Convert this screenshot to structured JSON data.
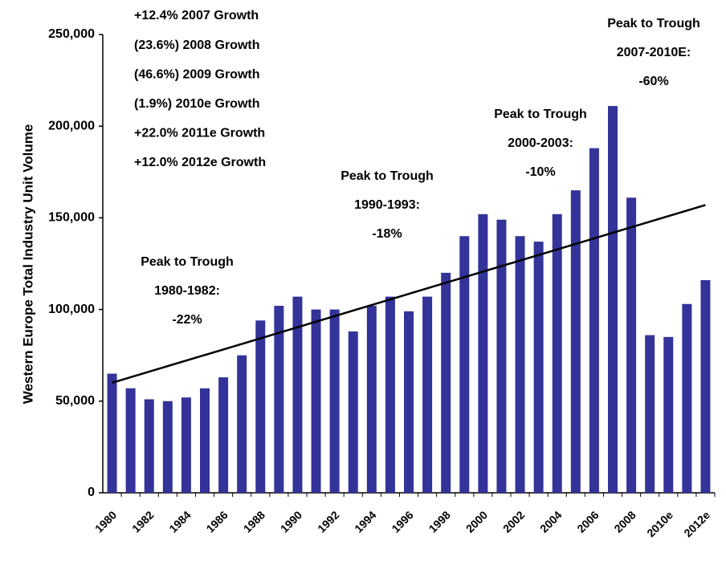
{
  "chart_data": {
    "type": "bar",
    "y_label": "Western Europe Total Industry Unit Volume",
    "categories": [
      "1980",
      null,
      "1982",
      null,
      "1984",
      null,
      "1986",
      null,
      "1988",
      null,
      "1990",
      null,
      "1992",
      null,
      "1994",
      null,
      "1996",
      null,
      "1998",
      null,
      "2000",
      null,
      "2002",
      null,
      "2004",
      null,
      "2006",
      null,
      "2008",
      null,
      "2010e",
      null,
      "2012e"
    ],
    "values": [
      65000,
      57000,
      51000,
      50000,
      52000,
      57000,
      63000,
      75000,
      94000,
      102000,
      107000,
      100000,
      100000,
      88000,
      102000,
      107000,
      99000,
      107000,
      120000,
      140000,
      152000,
      149000,
      140000,
      137000,
      152000,
      165000,
      188000,
      211000,
      161000,
      86000,
      85000,
      103000,
      116000
    ],
    "color": "#333399",
    "trend": [
      60000,
      157000
    ],
    "ylim": [
      0,
      250000
    ],
    "yticks": [
      0,
      {
        "value": 50000,
        "label": "50,000"
      },
      {
        "value": 100000,
        "label": "100,000"
      },
      {
        "value": 150000,
        "label": "150,000"
      },
      {
        "value": 200000,
        "label": "200,000"
      },
      {
        "value": 250000,
        "label": "250,000"
      }
    ],
    "grid": false,
    "growth_notes": [
      "+12.4% 2007 Growth",
      "(23.6%) 2008 Growth",
      "(46.6%) 2009 Growth",
      "(1.9%) 2010e Growth",
      "+22.0% 2011e Growth",
      "+12.0% 2012e Growth"
    ],
    "annotations": [
      [
        "Peak to Trough",
        "1980-1982:",
        "-22%"
      ],
      [
        "Peak to Trough",
        "1990-1993:",
        "-18%"
      ],
      [
        "Peak to Trough",
        "2000-2003:",
        "-10%"
      ],
      [
        "Peak to Trough",
        "2007-2010E:",
        "-60%"
      ]
    ]
  }
}
